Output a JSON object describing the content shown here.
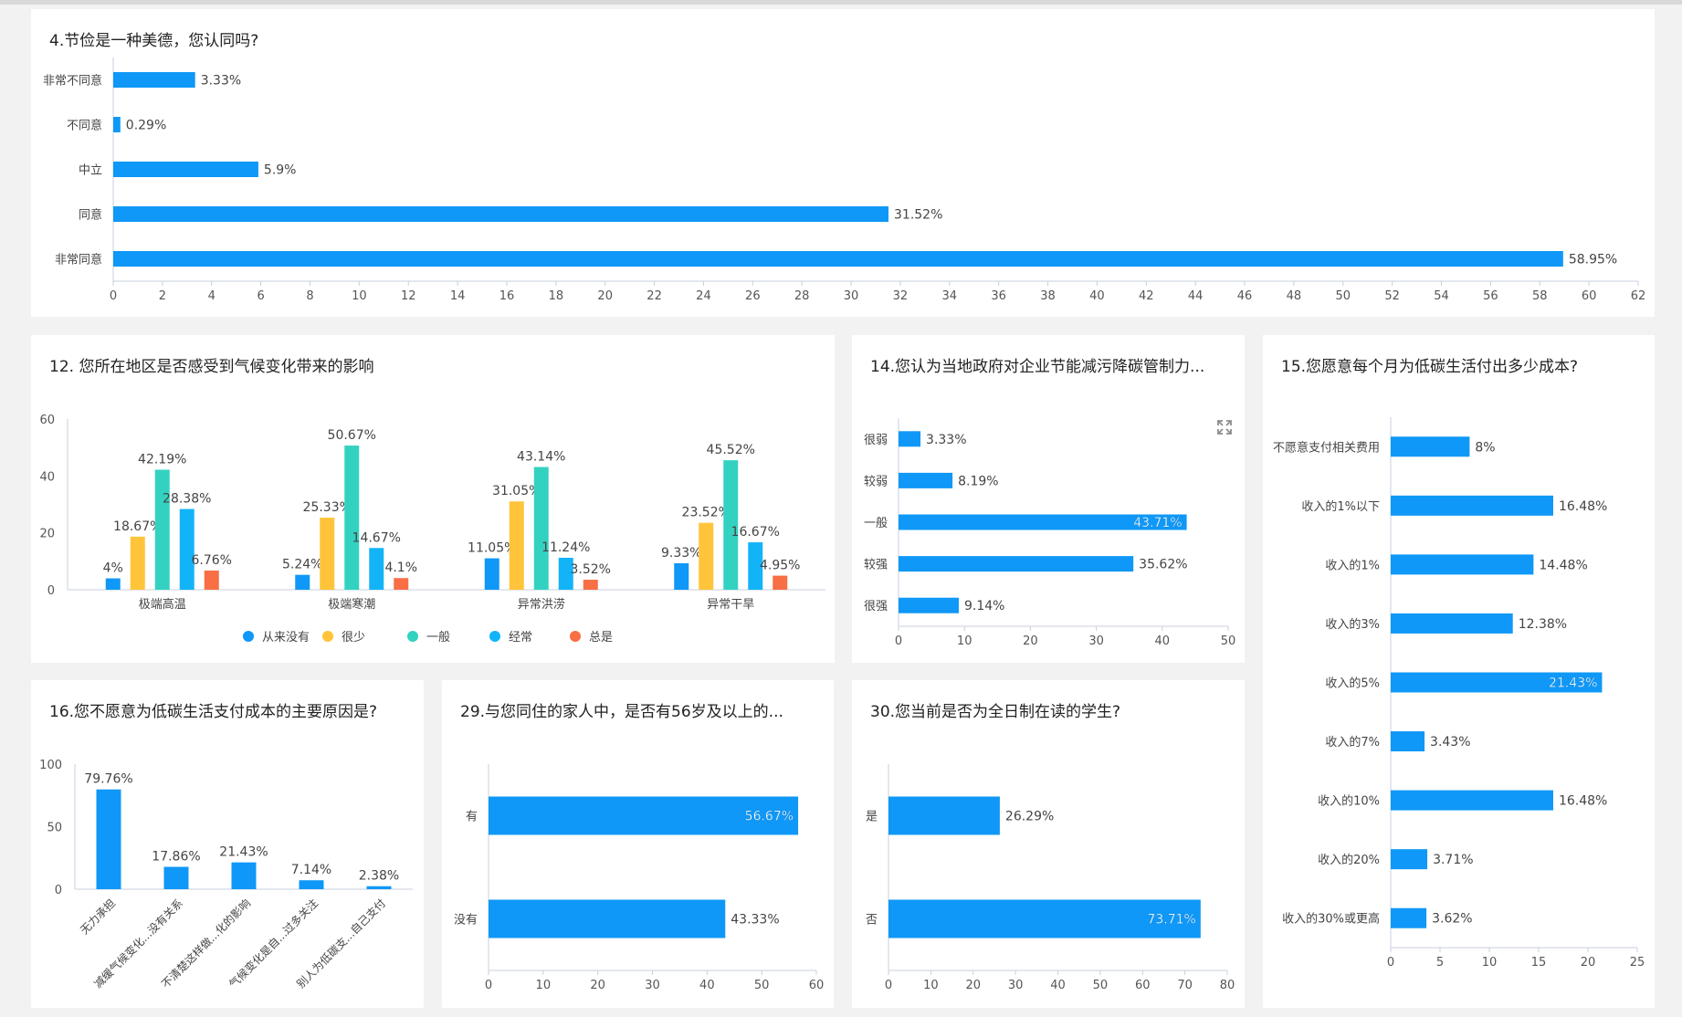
{
  "colors": {
    "primary": "#0f98f7",
    "series": [
      "#0f98f7",
      "#ffc43a",
      "#33d2c0",
      "#13b4f7",
      "#f86e45"
    ]
  },
  "cards": {
    "q4": {
      "title": "4.节俭是一种美德，您认同吗?"
    },
    "q12": {
      "title": "12. 您所在地区是否感受到气候变化带来的影响"
    },
    "q14": {
      "title": "14.您认为当地政府对企业节能减污降碳管制力..."
    },
    "q15": {
      "title": "15.您愿意每个月为低碳生活付出多少成本?"
    },
    "q16": {
      "title": "16.您不愿意为低碳生活支付成本的主要原因是?"
    },
    "q29": {
      "title": "29.与您同住的家人中，是否有56岁及以上的..."
    },
    "q30": {
      "title": "30.您当前是否为全日制在读的学生?"
    }
  },
  "chart_data": [
    {
      "id": "q4",
      "type": "bar",
      "orientation": "horizontal",
      "categories": [
        "非常不同意",
        "不同意",
        "中立",
        "同意",
        "非常同意"
      ],
      "values": [
        3.33,
        0.29,
        5.9,
        31.52,
        58.95
      ],
      "labels": [
        "3.33%",
        "0.29%",
        "5.9%",
        "31.52%",
        "58.95%"
      ],
      "xlim": [
        0,
        62
      ],
      "ticks": [
        "0",
        "2",
        "4",
        "6",
        "8",
        "10",
        "12",
        "14",
        "16",
        "18",
        "20",
        "22",
        "24",
        "26",
        "28",
        "30",
        "32",
        "34",
        "36",
        "38",
        "40",
        "42",
        "44",
        "46",
        "48",
        "50",
        "52",
        "54",
        "56",
        "58",
        "60",
        "62"
      ]
    },
    {
      "id": "q12",
      "type": "bar",
      "orientation": "vertical",
      "categories": [
        "极端高温",
        "极端寒潮",
        "异常洪涝",
        "异常干旱"
      ],
      "series": [
        {
          "name": "从来没有",
          "values": [
            4,
            5.24,
            11.05,
            9.33
          ],
          "labels": [
            "4%",
            "5.24%",
            "11.05%",
            "9.33%"
          ]
        },
        {
          "name": "很少",
          "values": [
            18.67,
            25.33,
            31.05,
            23.52
          ],
          "labels": [
            "18.67%",
            "25.33%",
            "31.05%",
            "23.52%"
          ]
        },
        {
          "name": "一般",
          "values": [
            42.19,
            50.67,
            43.14,
            45.52
          ],
          "labels": [
            "42.19%",
            "50.67%",
            "43.14%",
            "45.52%"
          ]
        },
        {
          "name": "经常",
          "values": [
            28.38,
            14.67,
            11.24,
            16.67
          ],
          "labels": [
            "28.38%",
            "14.67%",
            "11.24%",
            "16.67%"
          ]
        },
        {
          "name": "总是",
          "values": [
            6.76,
            4.1,
            3.52,
            4.95
          ],
          "labels": [
            "6.76%",
            "4.1%",
            "3.52%",
            "4.95%"
          ]
        }
      ],
      "ylim": [
        0,
        60
      ],
      "ticks": [
        "0",
        "20",
        "40",
        "60"
      ],
      "legend": "bottom"
    },
    {
      "id": "q14",
      "type": "bar",
      "orientation": "horizontal",
      "categories": [
        "很弱",
        "较弱",
        "一般",
        "较强",
        "很强"
      ],
      "values": [
        3.33,
        8.19,
        43.71,
        35.62,
        9.14
      ],
      "labels": [
        "3.33%",
        "8.19%",
        "43.71%",
        "35.62%",
        "9.14%"
      ],
      "xlim": [
        0,
        50
      ],
      "ticks": [
        "0",
        "10",
        "20",
        "30",
        "40",
        "50"
      ]
    },
    {
      "id": "q15",
      "type": "bar",
      "orientation": "horizontal",
      "categories": [
        "不愿意支付相关费用",
        "收入的1%以下",
        "收入的1%",
        "收入的3%",
        "收入的5%",
        "收入的7%",
        "收入的10%",
        "收入的20%",
        "收入的30%或更高"
      ],
      "values": [
        8,
        16.48,
        14.48,
        12.38,
        21.43,
        3.43,
        16.48,
        3.71,
        3.62
      ],
      "labels": [
        "8%",
        "16.48%",
        "14.48%",
        "12.38%",
        "21.43%",
        "3.43%",
        "16.48%",
        "3.71%",
        "3.62%"
      ],
      "xlim": [
        0,
        25
      ],
      "ticks": [
        "0",
        "5",
        "10",
        "15",
        "20",
        "25"
      ]
    },
    {
      "id": "q16",
      "type": "bar",
      "orientation": "vertical",
      "categories": [
        "无力承担",
        "减缓气候变化...没有关系",
        "不清楚这样做...化的影响",
        "气候变化是自...过多关注",
        "别人为低碳支...自己支付"
      ],
      "values": [
        79.76,
        17.86,
        21.43,
        7.14,
        2.38
      ],
      "labels": [
        "79.76%",
        "17.86%",
        "21.43%",
        "7.14%",
        "2.38%"
      ],
      "ylim": [
        0,
        100
      ],
      "ticks": [
        "0",
        "50",
        "100"
      ]
    },
    {
      "id": "q29",
      "type": "bar",
      "orientation": "horizontal",
      "categories": [
        "有",
        "没有"
      ],
      "values": [
        56.67,
        43.33
      ],
      "labels": [
        "56.67%",
        "43.33%"
      ],
      "xlim": [
        0,
        60
      ],
      "ticks": [
        "0",
        "10",
        "20",
        "30",
        "40",
        "50",
        "60"
      ]
    },
    {
      "id": "q30",
      "type": "bar",
      "orientation": "horizontal",
      "categories": [
        "是",
        "否"
      ],
      "values": [
        26.29,
        73.71
      ],
      "labels": [
        "26.29%",
        "73.71%"
      ],
      "xlim": [
        0,
        80
      ],
      "ticks": [
        "0",
        "10",
        "20",
        "30",
        "40",
        "50",
        "60",
        "70",
        "80"
      ]
    }
  ]
}
